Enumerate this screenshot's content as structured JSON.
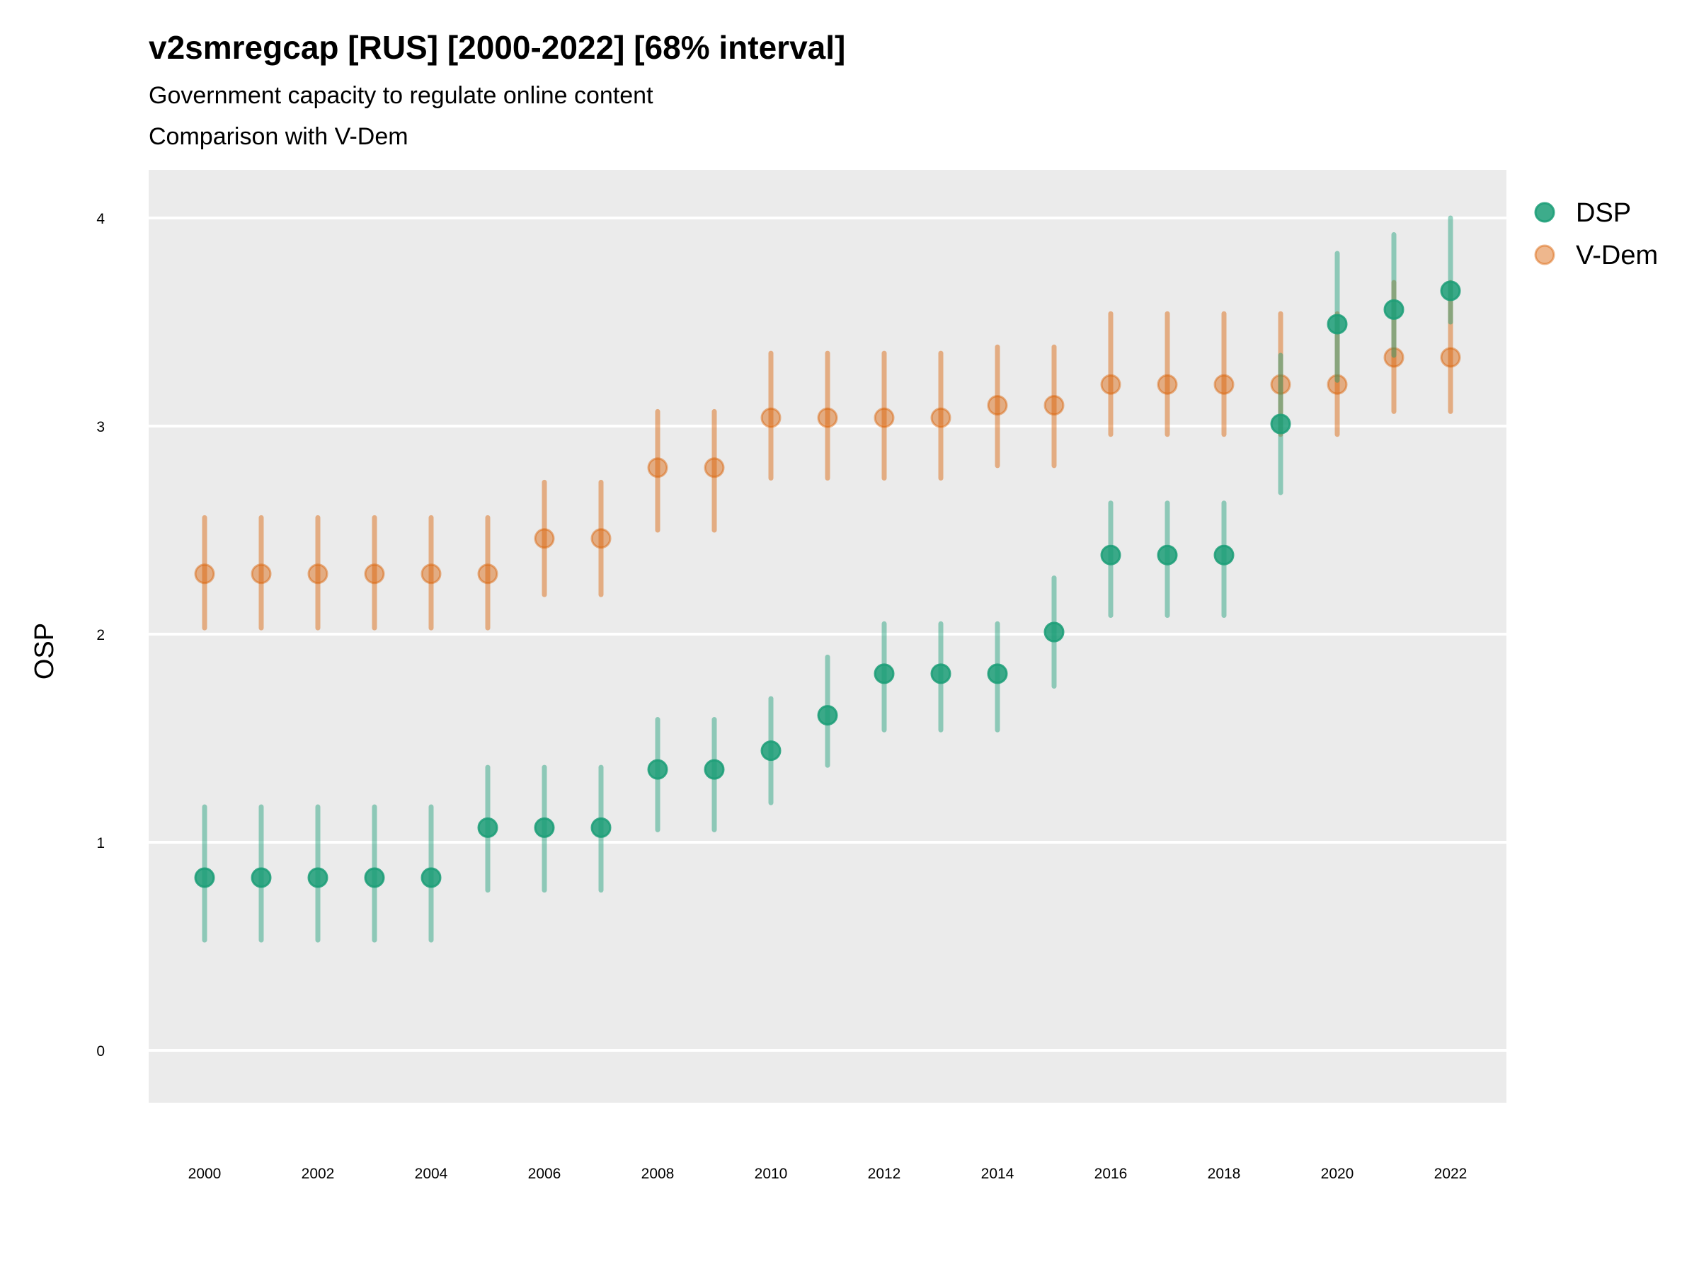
{
  "chart_data": {
    "type": "scatter",
    "title": "v2smregcap [RUS] [2000-2022] [68% interval]",
    "subtitle": "Government capacity to regulate online content",
    "subtitle2": "Comparison with V-Dem",
    "xlabel": "",
    "ylabel": "OSP",
    "xlim": [
      1999,
      2023
    ],
    "ylim": [
      -0.25,
      4.25
    ],
    "x_ticks": [
      "2000",
      "2002",
      "2004",
      "2006",
      "2008",
      "2010",
      "2012",
      "2014",
      "2016",
      "2018",
      "2020",
      "2022"
    ],
    "y_ticks": [
      "0",
      "1",
      "2",
      "3",
      "4"
    ],
    "grid": true,
    "legend_position": "right",
    "x": [
      2000,
      2001,
      2002,
      2003,
      2004,
      2005,
      2006,
      2007,
      2008,
      2009,
      2010,
      2011,
      2012,
      2013,
      2014,
      2015,
      2016,
      2017,
      2018,
      2019,
      2020,
      2021,
      2022
    ],
    "series": [
      {
        "name": "DSP",
        "color": "#1b9e77",
        "values": [
          0.83,
          0.83,
          0.83,
          0.83,
          0.83,
          1.07,
          1.07,
          1.07,
          1.35,
          1.35,
          1.44,
          1.61,
          1.81,
          1.81,
          1.81,
          2.01,
          2.38,
          2.38,
          2.38,
          3.01,
          3.49,
          3.56,
          3.65
        ],
        "upper": [
          1.17,
          1.17,
          1.17,
          1.17,
          1.17,
          1.36,
          1.36,
          1.36,
          1.59,
          1.59,
          1.69,
          1.89,
          2.05,
          2.05,
          2.05,
          2.27,
          2.63,
          2.63,
          2.63,
          3.34,
          3.83,
          3.92,
          4.0
        ],
        "lower": [
          0.53,
          0.53,
          0.53,
          0.53,
          0.53,
          0.77,
          0.77,
          0.77,
          1.06,
          1.06,
          1.19,
          1.37,
          1.54,
          1.54,
          1.54,
          1.75,
          2.09,
          2.09,
          2.09,
          2.68,
          3.22,
          3.34,
          3.5
        ]
      },
      {
        "name": "V-Dem",
        "color": "#d95f02",
        "values": [
          2.29,
          2.29,
          2.29,
          2.29,
          2.29,
          2.29,
          2.46,
          2.46,
          2.8,
          2.8,
          3.04,
          3.04,
          3.04,
          3.04,
          3.1,
          3.1,
          3.2,
          3.2,
          3.2,
          3.2,
          3.2,
          3.33,
          3.33
        ],
        "upper": [
          2.56,
          2.56,
          2.56,
          2.56,
          2.56,
          2.56,
          2.73,
          2.73,
          3.07,
          3.07,
          3.35,
          3.35,
          3.35,
          3.35,
          3.38,
          3.38,
          3.54,
          3.54,
          3.54,
          3.54,
          3.54,
          3.69,
          3.69
        ],
        "lower": [
          2.03,
          2.03,
          2.03,
          2.03,
          2.03,
          2.03,
          2.19,
          2.19,
          2.5,
          2.5,
          2.75,
          2.75,
          2.75,
          2.75,
          2.81,
          2.81,
          2.96,
          2.96,
          2.96,
          2.96,
          2.96,
          3.07,
          3.07
        ]
      }
    ]
  }
}
